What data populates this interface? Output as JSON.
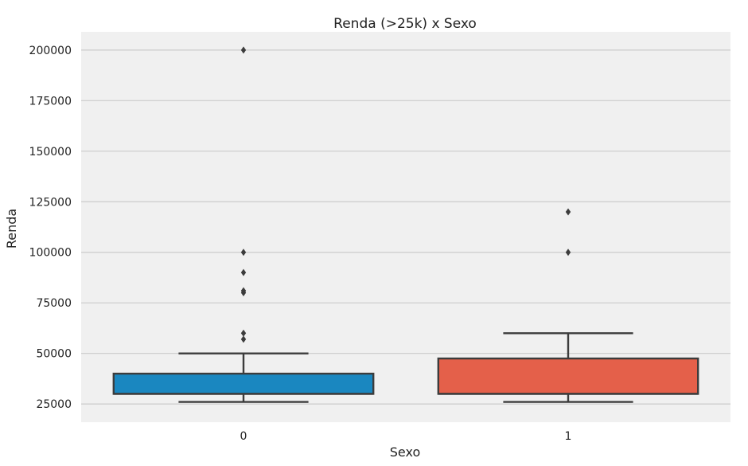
{
  "chart_data": {
    "type": "box",
    "title": "Renda (>25k) x Sexo",
    "xlabel": "Sexo",
    "ylabel": "Renda",
    "categories": [
      "0",
      "1"
    ],
    "ylim": [
      16000,
      209000
    ],
    "yticks": [
      25000,
      50000,
      75000,
      100000,
      125000,
      150000,
      175000,
      200000
    ],
    "grid": true,
    "background_color": "#f0f0f0",
    "grid_color": "#cbcbcb",
    "boxes": [
      {
        "category": "0",
        "color": "#1a87c0",
        "whisker_low": 26000,
        "q1": 30000,
        "median": 30000,
        "q3": 40000,
        "whisker_high": 50000,
        "outliers": [
          57000,
          60000,
          80000,
          81000,
          90000,
          100000,
          200000
        ]
      },
      {
        "category": "1",
        "color": "#e4604a",
        "whisker_low": 26000,
        "q1": 30000,
        "median": 30000,
        "q3": 47500,
        "whisker_high": 60000,
        "outliers": [
          100000,
          120000
        ]
      }
    ]
  }
}
